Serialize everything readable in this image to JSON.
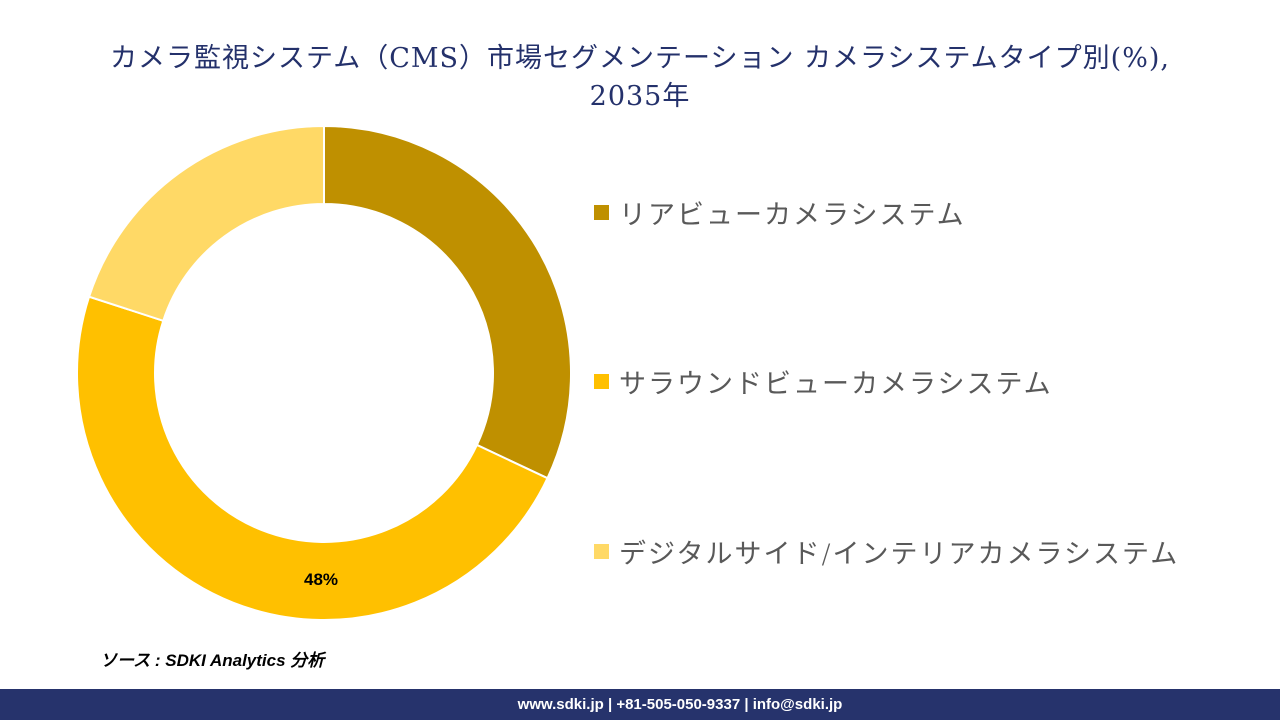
{
  "header": {
    "title_line1": "カメラ監視システム（CMS）市場セグメンテーション カメラシステムタイプ別(%),",
    "title_line2": "2035年"
  },
  "chart_data": {
    "type": "pie",
    "subtype": "donut",
    "title": "カメラ監視システム（CMS）市場セグメンテーション カメラシステムタイプ別(%), 2035年",
    "categories": [
      "リアビューカメラシステム",
      "サラウンドビューカメラシステム",
      "デジタルサイド/インテリアカメラシステム"
    ],
    "values": [
      32,
      48,
      20
    ],
    "unit": "%",
    "colors": [
      "#bf9000",
      "#ffc000",
      "#ffd966"
    ],
    "data_labels": [
      {
        "category": "サラウンドビューカメラシステム",
        "text": "48%"
      }
    ],
    "legend_position": "right",
    "start_angle_deg": 0,
    "direction": "clockwise"
  },
  "legend": {
    "items": [
      {
        "label": "リアビューカメラシステム",
        "color": "#bf9000"
      },
      {
        "label": "サラウンドビューカメラシステム",
        "color": "#ffc000"
      },
      {
        "label": "デジタルサイド/インテリアカメラシステム",
        "color": "#ffd966"
      }
    ]
  },
  "labels": {
    "surround_value": "48%"
  },
  "source": {
    "text": "ソース : SDKI Analytics 分析"
  },
  "footer": {
    "contact": "www.sdki.jp | +81-505-050-9337 | info@sdki.jp"
  },
  "colors": {
    "title": "#24316b",
    "footer_bg": "#26336c"
  }
}
